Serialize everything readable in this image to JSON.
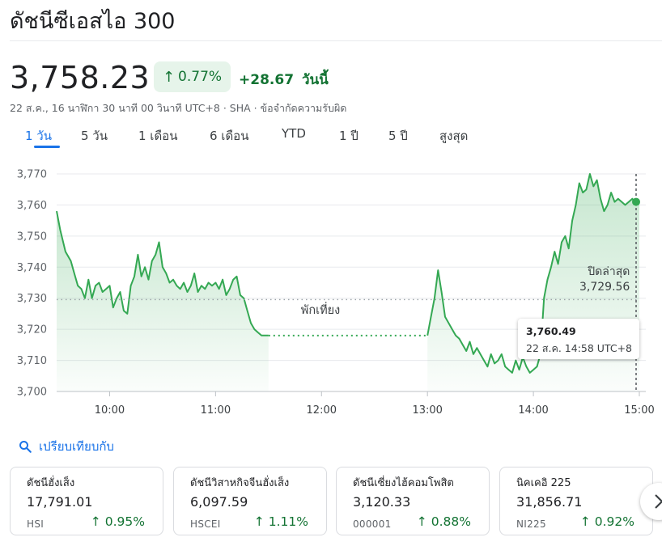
{
  "header": {
    "title": "ดัชนีซีเอสไอ 300",
    "price": "3,758.23",
    "change_pct": "0.77%",
    "change_abs": "+28.67",
    "today_label": "วันนี้",
    "meta_text": "22 ส.ค., 16 นาฬิกา 30 นาที 00 วินาที UTC+8 · SHA · ",
    "disclaimer": "ข้อจำกัดความรับผิด"
  },
  "tabs": [
    "1 วัน",
    "5 วัน",
    "1 เดือน",
    "6 เดือน",
    "YTD",
    "1 ปี",
    "5 ปี",
    "สูงสุด"
  ],
  "colors": {
    "up": "#137333",
    "line": "#34a853",
    "accent": "#1a73e8"
  },
  "chart_data": {
    "type": "line",
    "x_ticks": [
      "10:00",
      "11:00",
      "12:00",
      "13:00",
      "14:00",
      "15:00"
    ],
    "y_ticks": [
      "3,770",
      "3,760",
      "3,750",
      "3,740",
      "3,730",
      "3,720",
      "3,710",
      "3,700"
    ],
    "ylim": [
      3700,
      3770
    ],
    "grid": "horizontal",
    "previous_close": 3729.56,
    "previous_close_label": "ปิดล่าสุด",
    "previous_close_value": "3,729.56",
    "lunch_label": "พักเที่ยง",
    "tooltip": {
      "value": "3,760.49",
      "time": "22 ส.ค. 14:58 UTC+8"
    },
    "series": [
      {
        "x": [
          "09:30",
          "09:32",
          "09:35",
          "09:38",
          "09:40",
          "09:42",
          "09:44",
          "09:46",
          "09:48",
          "09:50",
          "09:52",
          "09:54",
          "09:56",
          "09:58",
          "10:00",
          "10:02",
          "10:04",
          "10:06",
          "10:08",
          "10:10",
          "10:12",
          "10:14",
          "10:16",
          "10:18",
          "10:20",
          "10:22",
          "10:24",
          "10:26",
          "10:28",
          "10:30",
          "10:32",
          "10:34",
          "10:36",
          "10:38",
          "10:40",
          "10:42",
          "10:44",
          "10:46",
          "10:48",
          "10:50",
          "10:52",
          "10:54",
          "10:56",
          "10:58",
          "11:00",
          "11:02",
          "11:04",
          "11:06",
          "11:08",
          "11:10",
          "11:12",
          "11:14",
          "11:16",
          "11:18",
          "11:20",
          "11:22",
          "11:24",
          "11:26",
          "11:28",
          "11:30"
        ],
        "y": [
          3758,
          3752,
          3745,
          3742,
          3738,
          3734,
          3733,
          3730,
          3736,
          3730,
          3734,
          3735,
          3732,
          3733,
          3734,
          3727,
          3730,
          3732,
          3726,
          3725,
          3734,
          3737,
          3744,
          3737,
          3740,
          3736,
          3742,
          3744,
          3748,
          3740,
          3738,
          3735,
          3736,
          3734,
          3733,
          3735,
          3732,
          3734,
          3738,
          3732,
          3734,
          3733,
          3735,
          3734,
          3735,
          3733,
          3736,
          3731,
          3733,
          3736,
          3737,
          3731,
          3730,
          3726,
          3722,
          3720,
          3719,
          3718,
          3718,
          3718
        ]
      },
      {
        "x": [
          "13:00",
          "13:02",
          "13:04",
          "13:06",
          "13:08",
          "13:10",
          "13:12",
          "13:14",
          "13:16",
          "13:18",
          "13:20",
          "13:22",
          "13:24",
          "13:26",
          "13:28",
          "13:30",
          "13:32",
          "13:34",
          "13:36",
          "13:38",
          "13:40",
          "13:42",
          "13:44",
          "13:46",
          "13:48",
          "13:50",
          "13:52",
          "13:54",
          "13:56",
          "13:58",
          "14:00",
          "14:02",
          "14:04",
          "14:06",
          "14:08",
          "14:10",
          "14:12",
          "14:14",
          "14:16",
          "14:18",
          "14:20",
          "14:22",
          "14:24",
          "14:26",
          "14:28",
          "14:30",
          "14:32",
          "14:34",
          "14:36",
          "14:38",
          "14:40",
          "14:42",
          "14:44",
          "14:46",
          "14:48",
          "14:50",
          "14:52",
          "14:54",
          "14:56",
          "14:58",
          "15:00"
        ],
        "y": [
          3718,
          3724,
          3730,
          3739,
          3732,
          3724,
          3722,
          3720,
          3718,
          3717,
          3715,
          3713,
          3716,
          3712,
          3714,
          3712,
          3710,
          3708,
          3712,
          3709,
          3710,
          3712,
          3708,
          3707,
          3706,
          3710,
          3707,
          3711,
          3708,
          3706,
          3707,
          3708,
          3712,
          3730,
          3736,
          3740,
          3745,
          3741,
          3748,
          3750,
          3746,
          3755,
          3760,
          3767,
          3764,
          3765,
          3770,
          3766,
          3768,
          3762,
          3758,
          3760,
          3764,
          3761,
          3762,
          3761,
          3760,
          3761,
          3762,
          3760.5,
          3761
        ]
      }
    ]
  },
  "compare": {
    "label": "เปรียบเทียบกับ"
  },
  "cards": [
    {
      "name": "ดัชนีฮั่งเส็ง",
      "value": "17,791.01",
      "symbol": "HSI",
      "pct": "0.95%"
    },
    {
      "name": "ดัชนีวิสาหกิจจีนฮั่งเส็ง",
      "value": "6,097.59",
      "symbol": "HSCEI",
      "pct": "1.11%"
    },
    {
      "name": "ดัชนีเซี่ยงไฮ้คอมโพสิต",
      "value": "3,120.33",
      "symbol": "000001",
      "pct": "0.88%"
    },
    {
      "name": "นิคเคอิ 225",
      "value": "31,856.71",
      "symbol": "NI225",
      "pct": "0.92%"
    }
  ]
}
